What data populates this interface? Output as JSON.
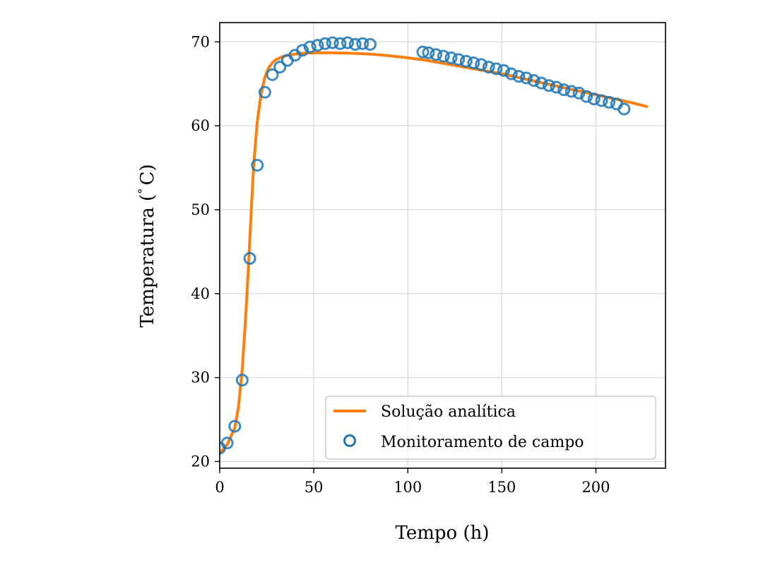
{
  "chart_data": {
    "type": "line",
    "title": "",
    "xlabel": "Tempo (h)",
    "ylabel": "Temperatura (°C)",
    "ylabel_prefix": "Temperatura (",
    "ylabel_degree": "°",
    "ylabel_suffix": "C)",
    "xlim": [
      0,
      237
    ],
    "ylim": [
      19.2,
      72.3
    ],
    "xticks": [
      0,
      50,
      100,
      150,
      200
    ],
    "yticks": [
      20,
      30,
      40,
      50,
      60,
      70
    ],
    "xtick_labels": [
      "0",
      "50",
      "100",
      "150",
      "200"
    ],
    "ytick_labels": [
      "20",
      "30",
      "40",
      "50",
      "60",
      "70"
    ],
    "grid": true,
    "legend_position": "lower-right",
    "colors": {
      "analytic": "#ff7f0e",
      "field": "#1f77b4"
    },
    "series": [
      {
        "name": "Solução analítica",
        "style": "line",
        "x": [
          0,
          4,
          8,
          10,
          12,
          14,
          15,
          16,
          17,
          18,
          19,
          20,
          22,
          24,
          26,
          28,
          30,
          33,
          36,
          40,
          45,
          50,
          55,
          60,
          70,
          80,
          90,
          100,
          110,
          120,
          130,
          140,
          150,
          160,
          170,
          180,
          190,
          200,
          210,
          220,
          227
        ],
        "y": [
          21.0,
          22.0,
          24.0,
          26.5,
          31.0,
          38.0,
          42.0,
          46.5,
          51.0,
          55.0,
          58.0,
          60.5,
          63.8,
          65.8,
          66.9,
          67.5,
          67.9,
          68.2,
          68.4,
          68.55,
          68.65,
          68.7,
          68.7,
          68.7,
          68.65,
          68.55,
          68.35,
          68.1,
          67.8,
          67.4,
          67.0,
          66.6,
          66.2,
          65.7,
          65.2,
          64.7,
          64.2,
          63.7,
          63.2,
          62.7,
          62.3
        ]
      },
      {
        "name": "Monitoramento de campo",
        "style": "markers",
        "x": [
          0,
          4,
          8,
          12,
          16,
          20,
          24,
          28,
          32,
          36,
          40,
          44,
          48,
          52,
          56,
          60,
          64,
          68,
          72,
          76,
          80,
          108,
          111,
          115,
          119,
          123,
          127,
          131,
          135,
          139,
          143,
          147,
          151,
          155,
          159,
          163,
          167,
          171,
          175,
          179,
          183,
          187,
          191,
          195,
          199,
          203,
          207,
          211,
          215
        ],
        "y": [
          21.6,
          22.2,
          24.2,
          29.7,
          44.2,
          55.3,
          64.0,
          66.1,
          67.0,
          67.8,
          68.4,
          69.0,
          69.4,
          69.6,
          69.8,
          69.9,
          69.8,
          69.9,
          69.7,
          69.8,
          69.7,
          68.8,
          68.7,
          68.5,
          68.3,
          68.1,
          67.9,
          67.7,
          67.5,
          67.3,
          67.0,
          66.8,
          66.6,
          66.2,
          65.9,
          65.7,
          65.4,
          65.1,
          64.8,
          64.6,
          64.3,
          64.1,
          63.9,
          63.5,
          63.2,
          63.0,
          62.8,
          62.6,
          62.0
        ]
      }
    ]
  }
}
